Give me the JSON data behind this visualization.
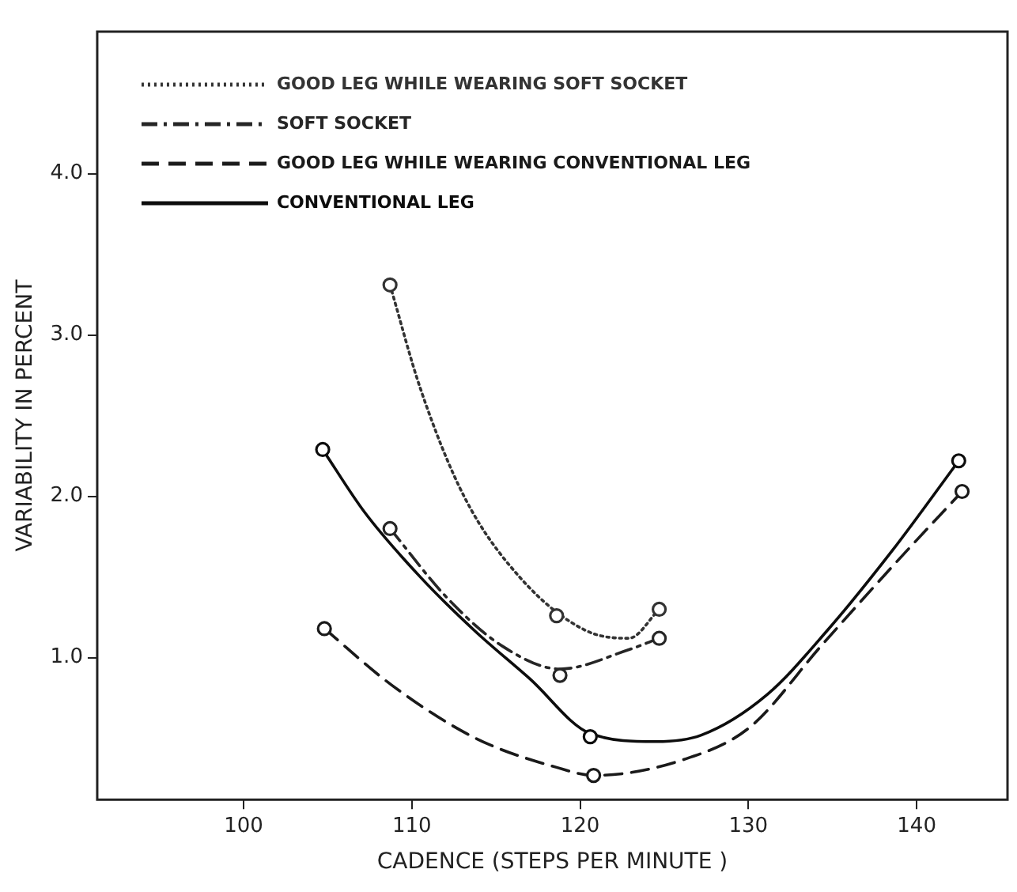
{
  "chart_data": {
    "type": "line",
    "xlabel": "CADENCE (STEPS PER MINUTE )",
    "ylabel": "VARIABILITY IN PERCENT",
    "xlim": [
      91.3,
      145.4
    ],
    "ylim": [
      0.12,
      4.88
    ],
    "xticks": [
      100,
      110,
      120,
      130,
      140
    ],
    "yticks": [
      {
        "value": 1,
        "label": "1.0"
      },
      {
        "value": 2,
        "label": "2.0"
      },
      {
        "value": 3,
        "label": "3.0"
      },
      {
        "value": 4,
        "label": "4.0"
      }
    ],
    "grid": false,
    "legend": "top left",
    "series": [
      {
        "name": "GOOD LEG WHILE WEARING SOFT SOCKET",
        "type": "line",
        "color": "#333333",
        "line_style": "dotted",
        "marker": "none",
        "x": [
          108.7,
          110.5,
          113.1,
          116.4,
          120.3,
          122.9,
          124.7
        ],
        "values": [
          3.31,
          2.67,
          2.0,
          1.5,
          1.17,
          1.12,
          1.3
        ]
      },
      {
        "name": "SOFT SOCKET",
        "type": "line",
        "color": "#262626",
        "line_style": "dashdot",
        "marker": "none",
        "x": [
          108.7,
          112.1,
          115.4,
          118.8,
          122.9,
          124.7
        ],
        "values": [
          1.8,
          1.37,
          1.07,
          0.93,
          1.05,
          1.12
        ]
      },
      {
        "name": "GOOD LEG WHILE WEARING CONVENTIONAL LEG",
        "type": "line",
        "color": "#1a1a1a",
        "line_style": "dashed",
        "marker": "none",
        "x": [
          104.8,
          108.8,
          113.8,
          118.6,
          120.8,
          126.2,
          130.1,
          134.3,
          138.6,
          142.7
        ],
        "values": [
          1.18,
          0.83,
          0.5,
          0.32,
          0.27,
          0.37,
          0.57,
          1.07,
          1.57,
          2.03
        ]
      },
      {
        "name": "CONVENTIONAL LEG",
        "type": "line",
        "color": "#0d0d0d",
        "line_style": "solid",
        "marker": "none",
        "x": [
          104.7,
          107.2,
          110.5,
          113.7,
          117.0,
          120.6,
          124.5,
          127.2,
          131.1,
          134.7,
          138.6,
          142.5
        ],
        "values": [
          2.29,
          1.9,
          1.5,
          1.17,
          0.87,
          0.53,
          0.48,
          0.52,
          0.77,
          1.17,
          1.67,
          2.22
        ]
      },
      {
        "type": "scatter",
        "color": "#333333",
        "marker": "circle",
        "x": [
          108.7,
          118.6,
          124.7
        ],
        "values": [
          3.31,
          1.26,
          1.3
        ]
      },
      {
        "type": "scatter",
        "color": "#262626",
        "marker": "circle",
        "x": [
          108.7,
          118.8,
          124.7
        ],
        "values": [
          1.8,
          0.89,
          1.12
        ]
      },
      {
        "type": "scatter",
        "color": "#1a1a1a",
        "marker": "circle",
        "x": [
          104.8,
          120.8,
          142.7
        ],
        "values": [
          1.18,
          0.27,
          2.03
        ]
      },
      {
        "type": "scatter",
        "color": "#0d0d0d",
        "marker": "circle",
        "x": [
          104.7,
          120.6,
          142.5
        ],
        "values": [
          2.29,
          0.51,
          2.22
        ]
      }
    ]
  }
}
